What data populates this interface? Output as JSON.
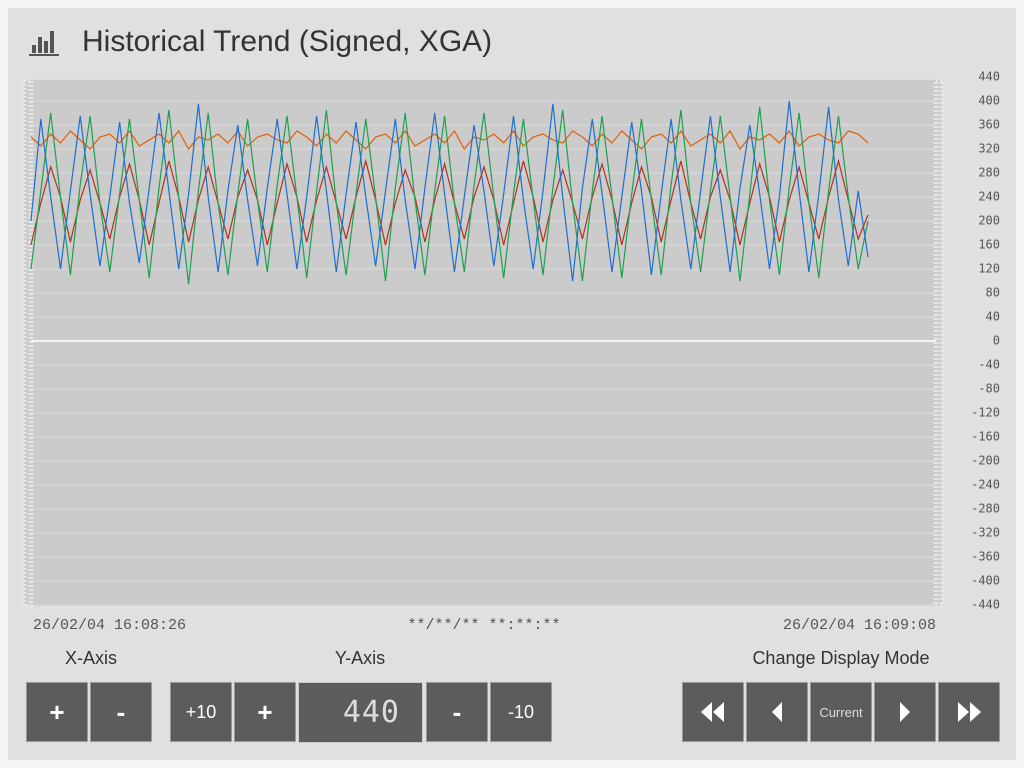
{
  "header": {
    "title": "Historical Trend (Signed, XGA)"
  },
  "chart_data": {
    "type": "line",
    "ylim": [
      -440,
      440
    ],
    "yticks": [
      -440,
      -400,
      -360,
      -320,
      -280,
      -240,
      -200,
      -160,
      -120,
      -80,
      -40,
      0,
      40,
      80,
      120,
      160,
      200,
      240,
      280,
      320,
      360,
      400,
      440
    ],
    "grid": true,
    "x_labels": [
      "26/02/04 16:08:26",
      "**/**/** **:**:**",
      "26/02/04 16:09:08"
    ],
    "series": [
      {
        "color": "#e0600a",
        "values": [
          340,
          325,
          345,
          330,
          350,
          335,
          320,
          340,
          345,
          330,
          350,
          325,
          335,
          345,
          330,
          350,
          320,
          340,
          335,
          345,
          330,
          350,
          325,
          340,
          345,
          335,
          330,
          350,
          340,
          325,
          345,
          330,
          350,
          335,
          320,
          340,
          345,
          330,
          350,
          325,
          335,
          345,
          330,
          350,
          320,
          340,
          335,
          345,
          330,
          350,
          325,
          340,
          345,
          335,
          330,
          350,
          340,
          325,
          345,
          330,
          350,
          335,
          320,
          340,
          345,
          330,
          350,
          325,
          335,
          345,
          330,
          350,
          320,
          340,
          335,
          345,
          330,
          350,
          325,
          340,
          345,
          335,
          330,
          350,
          345,
          330
        ]
      },
      {
        "color": "#b0321e",
        "values": [
          160,
          230,
          290,
          240,
          165,
          235,
          285,
          230,
          170,
          240,
          295,
          235,
          160,
          230,
          300,
          240,
          165,
          235,
          290,
          230,
          170,
          240,
          285,
          235,
          160,
          230,
          295,
          240,
          165,
          235,
          290,
          230,
          170,
          240,
          300,
          235,
          160,
          230,
          285,
          240,
          165,
          235,
          295,
          230,
          170,
          240,
          290,
          235,
          160,
          230,
          300,
          240,
          165,
          235,
          285,
          230,
          170,
          240,
          295,
          235,
          160,
          230,
          290,
          240,
          165,
          235,
          300,
          230,
          170,
          240,
          285,
          235,
          160,
          230,
          295,
          240,
          165,
          235,
          290,
          230,
          170,
          240,
          300,
          235,
          170,
          210
        ]
      },
      {
        "color": "#1fa050",
        "values": [
          120,
          250,
          380,
          240,
          110,
          260,
          375,
          230,
          115,
          245,
          370,
          235,
          105,
          255,
          385,
          240,
          95,
          250,
          380,
          230,
          110,
          245,
          370,
          235,
          115,
          260,
          375,
          240,
          105,
          250,
          385,
          230,
          110,
          245,
          370,
          240,
          100,
          255,
          380,
          235,
          110,
          250,
          375,
          230,
          115,
          260,
          380,
          240,
          105,
          245,
          370,
          235,
          110,
          255,
          385,
          230,
          100,
          250,
          375,
          240,
          105,
          245,
          370,
          235,
          110,
          260,
          385,
          230,
          115,
          250,
          375,
          240,
          100,
          245,
          390,
          235,
          110,
          255,
          380,
          230,
          105,
          250,
          375,
          240,
          120,
          200
        ]
      },
      {
        "color": "#1e6fd0",
        "values": [
          200,
          370,
          240,
          120,
          250,
          375,
          245,
          125,
          240,
          365,
          230,
          130,
          255,
          380,
          250,
          120,
          245,
          395,
          240,
          115,
          250,
          360,
          235,
          125,
          255,
          370,
          245,
          120,
          240,
          375,
          250,
          115,
          245,
          365,
          240,
          125,
          250,
          370,
          235,
          120,
          255,
          380,
          245,
          115,
          240,
          360,
          250,
          125,
          245,
          375,
          235,
          120,
          250,
          395,
          240,
          100,
          255,
          370,
          245,
          115,
          240,
          365,
          250,
          110,
          245,
          370,
          235,
          120,
          250,
          375,
          240,
          115,
          255,
          360,
          245,
          120,
          240,
          400,
          250,
          115,
          245,
          390,
          235,
          125,
          250,
          140
        ]
      }
    ]
  },
  "controls": {
    "x_axis": {
      "label": "X-Axis",
      "buttons": [
        "+",
        "-"
      ]
    },
    "y_axis": {
      "label": "Y-Axis",
      "buttons": [
        "+10",
        "+",
        "-",
        "-10"
      ]
    },
    "display_mode": {
      "label": "Change Display Mode",
      "buttons": [
        "Current"
      ]
    }
  }
}
